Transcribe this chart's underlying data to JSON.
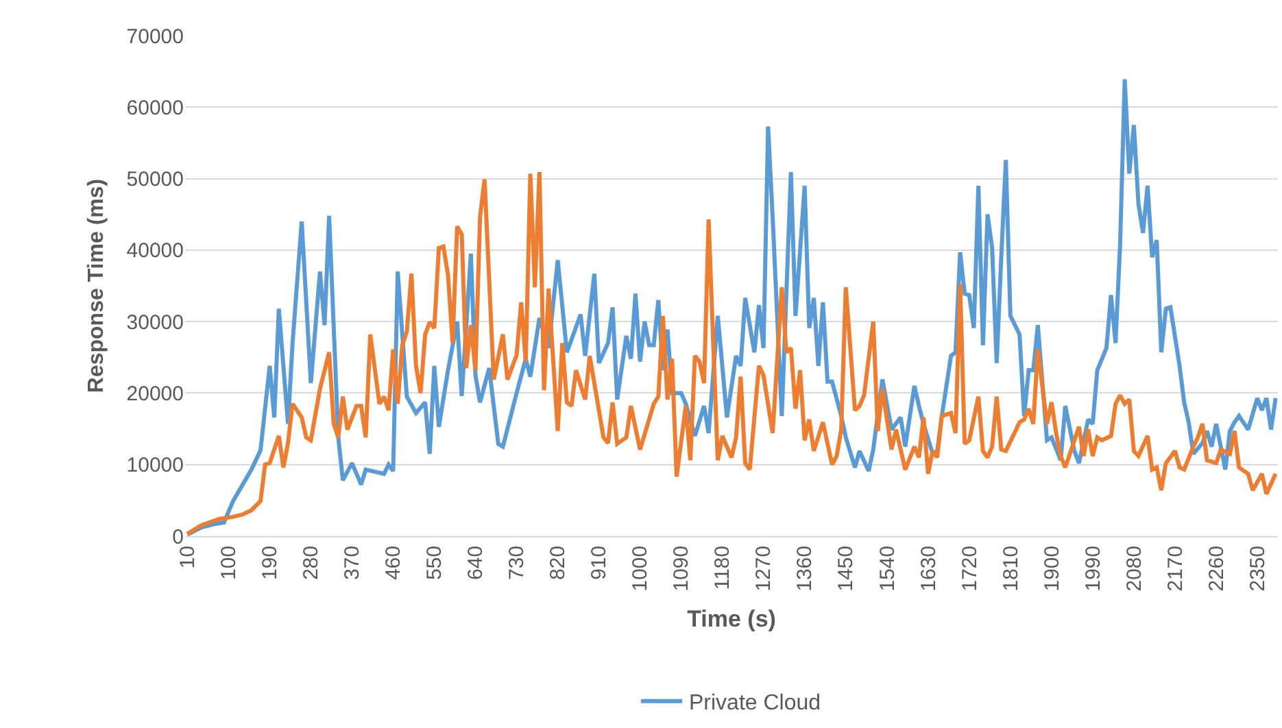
{
  "chart_data": {
    "type": "line",
    "xlabel": "Time (s)",
    "ylabel": "Response Time (ms)",
    "xlim": [
      5,
      2395
    ],
    "xticks": [
      10,
      100,
      190,
      280,
      370,
      460,
      550,
      640,
      730,
      820,
      910,
      1000,
      1090,
      1180,
      1270,
      1360,
      1450,
      1540,
      1630,
      1720,
      1810,
      1900,
      1990,
      2080,
      2170,
      2260,
      2350
    ],
    "ylim": [
      0,
      70000
    ],
    "yticks": [
      0,
      10000,
      20000,
      30000,
      40000,
      50000,
      60000,
      70000
    ],
    "grid": "y",
    "legend": "bottom",
    "marker": "none",
    "line_style": "solid",
    "series": [
      {
        "name": "Private Cloud",
        "color": "#5b9bd5",
        "x": [
          10,
          40,
          70,
          90,
          110,
          150,
          170,
          190,
          200,
          210,
          230,
          240,
          260,
          280,
          300,
          310,
          320,
          340,
          350,
          370,
          390,
          400,
          440,
          450,
          460,
          470,
          490,
          510,
          530,
          540,
          550,
          560,
          580,
          600,
          610,
          630,
          640,
          650,
          670,
          690,
          700,
          730,
          750,
          760,
          780,
          800,
          820,
          840,
          870,
          880,
          900,
          910,
          930,
          940,
          950,
          970,
          980,
          990,
          1000,
          1010,
          1020,
          1030,
          1040,
          1050,
          1060,
          1070,
          1090,
          1100,
          1120,
          1140,
          1150,
          1170,
          1190,
          1210,
          1220,
          1230,
          1250,
          1260,
          1270,
          1280,
          1290,
          1310,
          1330,
          1340,
          1360,
          1370,
          1380,
          1390,
          1400,
          1410,
          1420,
          1440,
          1450,
          1470,
          1480,
          1500,
          1510,
          1530,
          1550,
          1570,
          1580,
          1600,
          1610,
          1620,
          1640,
          1650,
          1660,
          1680,
          1690,
          1700,
          1710,
          1720,
          1730,
          1740,
          1750,
          1760,
          1770,
          1780,
          1790,
          1800,
          1810,
          1830,
          1840,
          1850,
          1860,
          1870,
          1890,
          1900,
          1920,
          1930,
          1950,
          1960,
          1980,
          1990,
          2000,
          2020,
          2030,
          2040,
          2050,
          2060,
          2070,
          2080,
          2090,
          2100,
          2110,
          2120,
          2130,
          2140,
          2150,
          2160,
          2180,
          2190,
          2200,
          2210,
          2230,
          2240,
          2250,
          2260,
          2280,
          2290,
          2300,
          2310,
          2330,
          2350,
          2360,
          2370,
          2380,
          2390
        ],
        "values": [
          200,
          1200,
          1700,
          1900,
          4900,
          9300,
          12000,
          23800,
          16600,
          31800,
          15700,
          27000,
          44000,
          21400,
          37000,
          29500,
          44800,
          13800,
          7800,
          10200,
          7200,
          9300,
          8700,
          10000,
          9100,
          37000,
          19500,
          17200,
          18700,
          11500,
          23800,
          15300,
          23200,
          30000,
          19600,
          39500,
          22500,
          18700,
          23500,
          12900,
          12500,
          20000,
          24800,
          22300,
          30500,
          26300,
          38600,
          25700,
          31000,
          25200,
          36700,
          24200,
          27000,
          32000,
          19100,
          28000,
          24800,
          33900,
          24400,
          30000,
          26700,
          26700,
          33000,
          23200,
          28900,
          20000,
          20000,
          18500,
          14000,
          18200,
          14400,
          30800,
          16600,
          25200,
          23800,
          33300,
          25700,
          32300,
          26300,
          57300,
          44600,
          16800,
          50900,
          30800,
          49000,
          29100,
          33300,
          23800,
          32700,
          21600,
          21600,
          16800,
          13800,
          9600,
          11900,
          9100,
          12100,
          21900,
          14900,
          16600,
          12500,
          21000,
          18200,
          15700,
          11500,
          11900,
          16800,
          25200,
          25700,
          39700,
          33900,
          33700,
          29100,
          49000,
          26700,
          45000,
          40300,
          24200,
          39000,
          52600,
          30800,
          28200,
          16800,
          23200,
          23200,
          29500,
          13400,
          13800,
          10600,
          18200,
          11900,
          10200,
          16300,
          15700,
          23200,
          26300,
          33700,
          27000,
          40900,
          63900,
          50700,
          57500,
          46500,
          42400,
          49000,
          39000,
          41400,
          25700,
          31800,
          32000,
          23800,
          18700,
          15900,
          11500,
          13000,
          14700,
          12500,
          15700,
          9300,
          14700,
          15900,
          16800,
          14900,
          19300,
          17600,
          19300,
          14900,
          19300
        ]
      },
      {
        "color": "#ed7d31",
        "x": [
          10,
          40,
          80,
          110,
          130,
          150,
          170,
          180,
          190,
          210,
          220,
          230,
          240,
          260,
          270,
          280,
          300,
          320,
          330,
          340,
          350,
          360,
          380,
          390,
          400,
          410,
          430,
          440,
          450,
          460,
          470,
          480,
          490,
          500,
          510,
          520,
          530,
          540,
          550,
          560,
          570,
          580,
          590,
          600,
          610,
          620,
          630,
          640,
          650,
          660,
          680,
          700,
          710,
          730,
          740,
          750,
          760,
          770,
          780,
          790,
          800,
          820,
          830,
          840,
          850,
          860,
          880,
          890,
          920,
          930,
          940,
          950,
          970,
          980,
          1000,
          1030,
          1040,
          1050,
          1060,
          1070,
          1080,
          1100,
          1110,
          1120,
          1130,
          1140,
          1150,
          1160,
          1170,
          1180,
          1200,
          1210,
          1220,
          1230,
          1240,
          1260,
          1270,
          1290,
          1310,
          1320,
          1330,
          1340,
          1350,
          1360,
          1370,
          1380,
          1400,
          1420,
          1430,
          1440,
          1450,
          1470,
          1480,
          1490,
          1510,
          1520,
          1530,
          1550,
          1560,
          1580,
          1600,
          1610,
          1620,
          1630,
          1640,
          1650,
          1660,
          1680,
          1690,
          1700,
          1710,
          1720,
          1740,
          1750,
          1760,
          1770,
          1780,
          1790,
          1800,
          1830,
          1840,
          1850,
          1860,
          1870,
          1890,
          1900,
          1910,
          1920,
          1930,
          1960,
          1970,
          1980,
          1990,
          2000,
          2010,
          2030,
          2040,
          2050,
          2060,
          2070,
          2080,
          2090,
          2110,
          2120,
          2130,
          2140,
          2150,
          2170,
          2180,
          2190,
          2210,
          2220,
          2230,
          2240,
          2260,
          2270,
          2290,
          2300,
          2310,
          2330,
          2340,
          2360,
          2370,
          2390
        ],
        "values": [
          300,
          1500,
          2400,
          2700,
          3000,
          3600,
          4900,
          10000,
          10200,
          14000,
          9600,
          13000,
          18500,
          16600,
          13800,
          13400,
          20600,
          25700,
          15700,
          13800,
          19500,
          14900,
          18200,
          18200,
          13800,
          28200,
          18500,
          19500,
          17600,
          26100,
          18500,
          26700,
          28600,
          36700,
          23800,
          20000,
          28200,
          29900,
          29100,
          40300,
          40500,
          36500,
          27000,
          43300,
          42200,
          23500,
          29500,
          23200,
          44600,
          49900,
          21900,
          28200,
          21900,
          25300,
          32700,
          24400,
          50700,
          34800,
          50900,
          20400,
          34600,
          14700,
          27000,
          18700,
          18200,
          23200,
          19100,
          25200,
          13800,
          13000,
          18700,
          12900,
          13800,
          18200,
          12100,
          18500,
          19500,
          30800,
          19100,
          24800,
          8300,
          18200,
          10600,
          25200,
          24400,
          21400,
          44300,
          27000,
          10600,
          14000,
          11000,
          13800,
          22300,
          10200,
          9300,
          23800,
          22500,
          14400,
          34800,
          25700,
          26300,
          17800,
          23200,
          13400,
          16300,
          11900,
          15900,
          10000,
          11200,
          14900,
          34800,
          17600,
          18200,
          19700,
          30000,
          14700,
          20600,
          12100,
          14900,
          9300,
          12500,
          11000,
          16600,
          8700,
          11900,
          11000,
          16800,
          17200,
          14400,
          35200,
          12900,
          13400,
          19500,
          11900,
          11000,
          12500,
          19500,
          12100,
          11900,
          15900,
          16300,
          17800,
          15700,
          26100,
          15700,
          18700,
          14400,
          11200,
          9600,
          15300,
          11200,
          14900,
          11200,
          13800,
          13400,
          14000,
          18500,
          19700,
          18500,
          19100,
          11900,
          11200,
          14000,
          9300,
          9600,
          6400,
          10200,
          11900,
          9600,
          9300,
          12500,
          13800,
          15700,
          10600,
          10200,
          12100,
          11500,
          14700,
          9600,
          8700,
          6400,
          8700,
          5900,
          8700
        ]
      }
    ]
  }
}
